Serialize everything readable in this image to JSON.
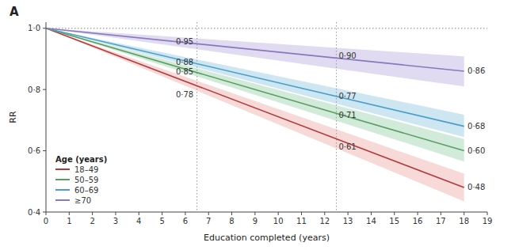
{
  "chart_data": {
    "type": "line",
    "title": "A",
    "x_label": "Education completed (years)",
    "y_label": "RR",
    "x": [
      0,
      18
    ],
    "xlim": [
      0,
      19
    ],
    "ylim": [
      0.4,
      1.02
    ],
    "xticks": [
      0,
      1,
      2,
      3,
      4,
      5,
      6,
      7,
      8,
      9,
      10,
      11,
      12,
      13,
      14,
      15,
      16,
      17,
      18,
      19
    ],
    "yticks": [
      {
        "value": 0.4,
        "label": "0·4"
      },
      {
        "value": 0.6,
        "label": "0·6"
      },
      {
        "value": 0.8,
        "label": "0·8"
      },
      {
        "value": 1.0,
        "label": "1·0"
      }
    ],
    "hline_y": 1.0,
    "vlines": [
      6.5,
      12.5
    ],
    "annotations": [
      {
        "text": "0·95",
        "x": 6.35,
        "y": 0.958,
        "align": "right"
      },
      {
        "text": "0·88",
        "x": 6.35,
        "y": 0.89,
        "align": "right"
      },
      {
        "text": "0·85",
        "x": 6.35,
        "y": 0.858,
        "align": "right"
      },
      {
        "text": "0·78",
        "x": 6.35,
        "y": 0.784,
        "align": "right"
      },
      {
        "text": "0·90",
        "x": 12.6,
        "y": 0.91,
        "align": "left"
      },
      {
        "text": "0·77",
        "x": 12.6,
        "y": 0.779,
        "align": "left"
      },
      {
        "text": "0·71",
        "x": 12.6,
        "y": 0.716,
        "align": "left"
      },
      {
        "text": "0·61",
        "x": 12.6,
        "y": 0.613,
        "align": "left"
      },
      {
        "text": "0·86",
        "x": 18.15,
        "y": 0.862,
        "align": "left"
      },
      {
        "text": "0·68",
        "x": 18.15,
        "y": 0.681,
        "align": "left"
      },
      {
        "text": "0·60",
        "x": 18.15,
        "y": 0.601,
        "align": "left"
      },
      {
        "text": "0·48",
        "x": 18.15,
        "y": 0.481,
        "align": "left"
      }
    ],
    "legend": "lower left",
    "legend_title": "Age (years)",
    "series": [
      {
        "name": "18–49",
        "color": "#b5373a",
        "band_color": "#f2c4c3",
        "values": [
          1.0,
          0.48
        ],
        "lower": [
          1.0,
          0.435
        ],
        "upper": [
          1.0,
          0.525
        ]
      },
      {
        "name": "50–59",
        "color": "#5a9e5f",
        "band_color": "#b8dfc4",
        "values": [
          1.0,
          0.6
        ],
        "lower": [
          1.0,
          0.565
        ],
        "upper": [
          1.0,
          0.638
        ]
      },
      {
        "name": "60–69",
        "color": "#4a9fc8",
        "band_color": "#b3d8eb",
        "values": [
          1.0,
          0.68
        ],
        "lower": [
          1.0,
          0.645
        ],
        "upper": [
          1.0,
          0.718
        ]
      },
      {
        "name": "≥70",
        "color": "#8878bc",
        "band_color": "#d0c8e8",
        "values": [
          1.0,
          0.86
        ],
        "lower": [
          1.0,
          0.81
        ],
        "upper": [
          1.0,
          0.908
        ]
      }
    ]
  }
}
